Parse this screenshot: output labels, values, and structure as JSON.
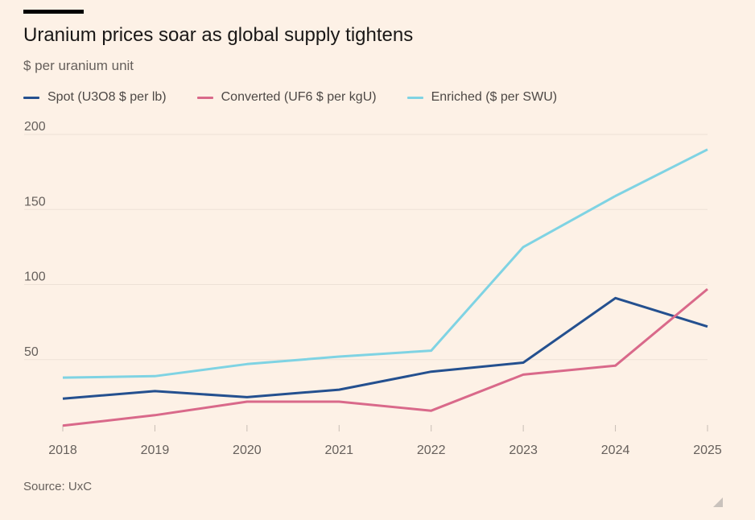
{
  "header": {
    "title": "Uranium prices soar as global supply tightens",
    "subtitle": "$ per uranium unit"
  },
  "footer": {
    "source": "Source: UxC"
  },
  "colors": {
    "background": "#fdf1e6",
    "spot": "#24508f",
    "converted": "#d9698a",
    "enriched": "#7fd3e3",
    "gridline": "#ede1d6",
    "axis": "#c7bdb4"
  },
  "chart_data": {
    "type": "line",
    "title": "Uranium prices soar as global supply tightens",
    "subtitle": "$ per uranium unit",
    "xlabel": "",
    "ylabel": "",
    "x": [
      "2018",
      "2019",
      "2020",
      "2021",
      "2022",
      "2023",
      "2024",
      "2025"
    ],
    "y_ticks": [
      50,
      100,
      150,
      200
    ],
    "ylim": [
      0,
      200
    ],
    "grid": true,
    "legend_position": "top-left",
    "series": [
      {
        "name": "Spot (U3O8 $ per lb)",
        "color": "#24508f",
        "values": [
          24,
          29,
          25,
          30,
          42,
          48,
          91,
          72
        ]
      },
      {
        "name": "Converted (UF6 $ per kgU)",
        "color": "#d9698a",
        "values": [
          6,
          13,
          22,
          22,
          16,
          40,
          46,
          97
        ]
      },
      {
        "name": "Enriched ($ per SWU)",
        "color": "#7fd3e3",
        "values": [
          38,
          39,
          47,
          52,
          56,
          125,
          159,
          190
        ]
      }
    ]
  }
}
